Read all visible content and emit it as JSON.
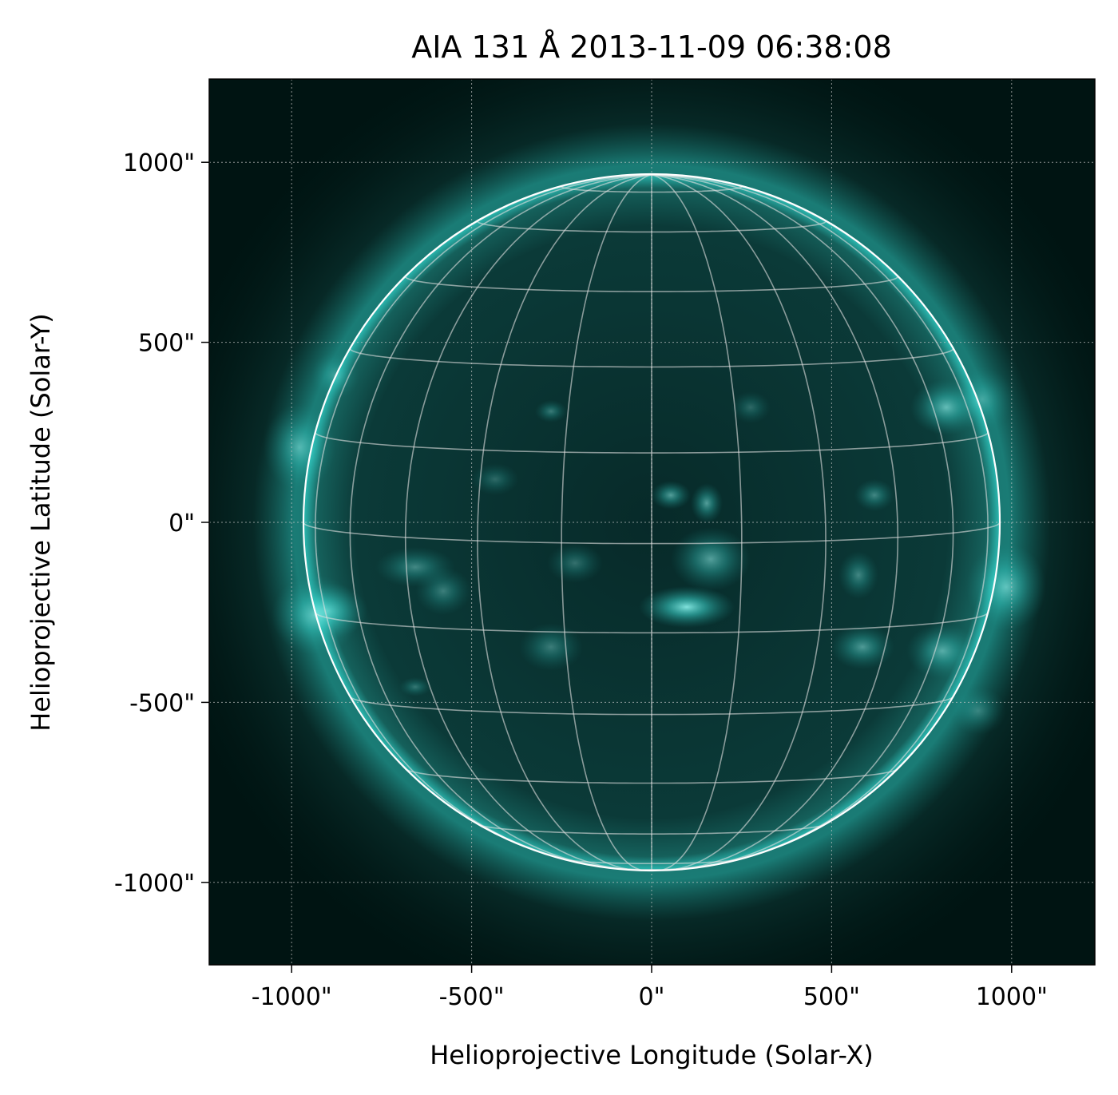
{
  "title": "AIA 131 Å 2013-11-09 06:38:08",
  "xlabel": "Helioprojective Longitude (Solar-X)",
  "ylabel": "Helioprojective Latitude (Solar-Y)",
  "x_ticks": [
    {
      "value": -1000,
      "label": "-1000\""
    },
    {
      "value": -500,
      "label": "-500\""
    },
    {
      "value": 0,
      "label": "0\""
    },
    {
      "value": 500,
      "label": "500\""
    },
    {
      "value": 1000,
      "label": "1000\""
    }
  ],
  "y_ticks": [
    {
      "value": 1000,
      "label": "1000\""
    },
    {
      "value": 500,
      "label": "500\""
    },
    {
      "value": 0,
      "label": "0\""
    },
    {
      "value": -500,
      "label": "-500\""
    },
    {
      "value": -1000,
      "label": "-1000\""
    }
  ],
  "colors": {
    "background": "#001412",
    "disk": "#0a3836",
    "corona": "#2fd8d0",
    "limb": "#ffffff",
    "grid": "#d0d0d0"
  }
}
